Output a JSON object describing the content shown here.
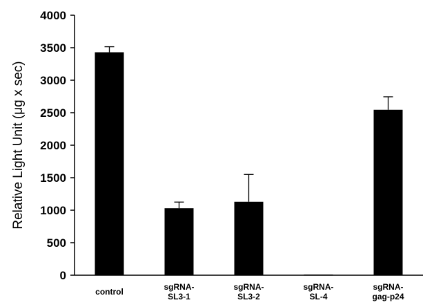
{
  "chart_data": {
    "type": "bar",
    "categories": [
      [
        "control"
      ],
      [
        "sgRNA-",
        "SL3-1"
      ],
      [
        "sgRNA-",
        "SL3-2"
      ],
      [
        "sgRNA-",
        "SL-4"
      ],
      [
        "sgRNA-",
        "gag-p24"
      ]
    ],
    "values": [
      3430,
      1030,
      1130,
      10,
      2545
    ],
    "errors": [
      85,
      95,
      420,
      0,
      200
    ],
    "ylabel": "Relative Light Unit (μg x sec)",
    "ylim": [
      0,
      4000
    ],
    "yticks": [
      0,
      500,
      1000,
      1500,
      2000,
      2500,
      3000,
      3500,
      4000
    ],
    "bar_color": "#000000",
    "grid": false
  }
}
